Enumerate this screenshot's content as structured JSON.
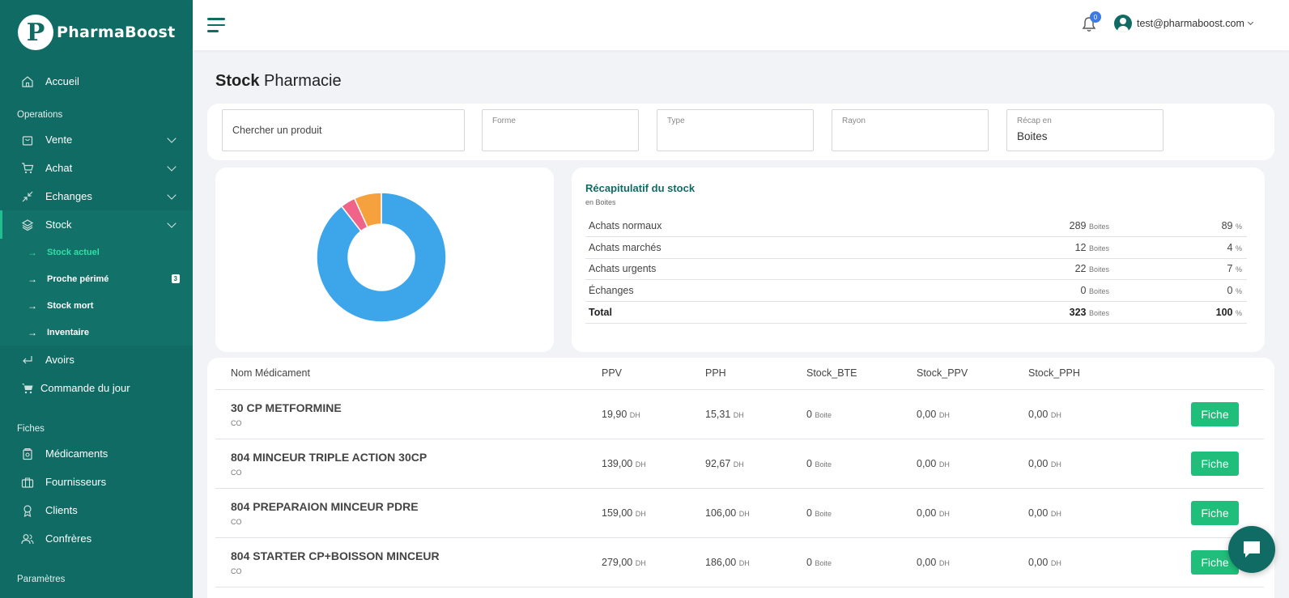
{
  "brand": {
    "mark": "P",
    "name_a": "Pharma",
    "name_b": "Boost"
  },
  "sidebar": {
    "accueil": "Accueil",
    "section_operations": "Operations",
    "vente": "Vente",
    "achat": "Achat",
    "echanges": "Echanges",
    "stock": "Stock",
    "stock_sub": [
      {
        "label": "Stock actuel"
      },
      {
        "label": "Proche périmé",
        "badge": "3"
      },
      {
        "label": "Stock mort"
      },
      {
        "label": "Inventaire"
      }
    ],
    "avoirs": "Avoirs",
    "commande": "Commande du jour",
    "section_fiches": "Fiches",
    "medicaments": "Médicaments",
    "fournisseurs": "Fournisseurs",
    "clients": "Clients",
    "confreres": "Confrères",
    "section_parametres": "Paramètres"
  },
  "topbar": {
    "notif_count": "0",
    "user_email": "test@pharmaboost.com"
  },
  "page": {
    "title_bold": "Stock",
    "title_rest": "Pharmacie"
  },
  "filters": {
    "search_placeholder": "Chercher un produit",
    "forme_label": "Forme",
    "type_label": "Type",
    "rayon_label": "Rayon",
    "recap_label": "Récap en",
    "recap_value": "Boites"
  },
  "chart_data": {
    "type": "pie",
    "donut": true,
    "categories": [
      "Achats normaux",
      "Achats marchés",
      "Achats urgents",
      "Échanges"
    ],
    "values": [
      289,
      12,
      22,
      0
    ],
    "colors": [
      "#3da5ea",
      "#f0648a",
      "#f5a13d",
      "#4bc0c0"
    ]
  },
  "recap": {
    "title": "Récapitulatif du stock",
    "subtitle": "en Boites",
    "unit": "Boites",
    "pct_unit": "%",
    "rows": [
      {
        "label": "Achats normaux",
        "value": "289",
        "pct": "89"
      },
      {
        "label": "Achats marchés",
        "value": "12",
        "pct": "4"
      },
      {
        "label": "Achats urgents",
        "value": "22",
        "pct": "7"
      },
      {
        "label": "Échanges",
        "value": "0",
        "pct": "0"
      }
    ],
    "total": {
      "label": "Total",
      "value": "323",
      "pct": "100"
    }
  },
  "table": {
    "headers": {
      "name": "Nom Médicament",
      "ppv": "PPV",
      "pph": "PPH",
      "stock_bte": "Stock_BTE",
      "stock_ppv": "Stock_PPV",
      "stock_pph": "Stock_PPH"
    },
    "currency": "DH",
    "stock_unit": "Boite",
    "button_label": "Fiche",
    "rows": [
      {
        "name": "30 CP METFORMINE",
        "sub": "CO",
        "ppv": "19,90",
        "pph": "15,31",
        "stock": "0",
        "stock_ppv": "0,00",
        "stock_pph": "0,00"
      },
      {
        "name": "804 MINCEUR TRIPLE ACTION 30CP",
        "sub": "CO",
        "ppv": "139,00",
        "pph": "92,67",
        "stock": "0",
        "stock_ppv": "0,00",
        "stock_pph": "0,00"
      },
      {
        "name": "804 PREPARAION MINCEUR PDRE",
        "sub": "CO",
        "ppv": "159,00",
        "pph": "106,00",
        "stock": "0",
        "stock_ppv": "0,00",
        "stock_pph": "0,00"
      },
      {
        "name": "804 STARTER CP+BOISSON MINCEUR",
        "sub": "CO",
        "ppv": "279,00",
        "pph": "186,00",
        "stock": "0",
        "stock_ppv": "0,00",
        "stock_pph": "0,00"
      }
    ]
  },
  "colors": {
    "sidebar": "#0f6b63",
    "accent": "#1fbf7b",
    "active_sub": "#2ee0a4"
  }
}
